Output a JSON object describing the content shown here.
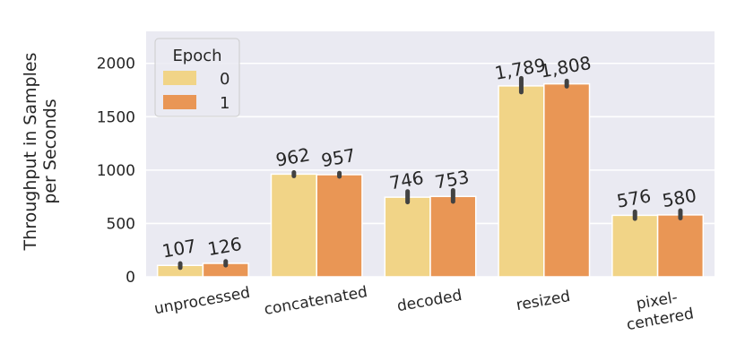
{
  "chart_data": {
    "type": "bar",
    "ylabel": [
      "Throughput in Samples",
      "per Seconds"
    ],
    "xlabel": "",
    "ylim": [
      0,
      2300
    ],
    "yticks": [
      0,
      500,
      1000,
      1500,
      2000
    ],
    "grid": true,
    "legend": {
      "title": "Epoch",
      "placement": "top-left"
    },
    "categories": [
      [
        "unprocessed"
      ],
      [
        "concatenated"
      ],
      [
        "decoded"
      ],
      [
        "resized"
      ],
      [
        "pixel-",
        "centered"
      ]
    ],
    "series": [
      {
        "name": "0",
        "color": "#f1d487",
        "values": [
          107,
          962,
          746,
          1789,
          576
        ],
        "labels": [
          "107",
          "962",
          "746",
          "1,789",
          "576"
        ],
        "err_low": [
          85,
          945,
          700,
          1730,
          545
        ],
        "err_high": [
          125,
          978,
          800,
          1860,
          610
        ]
      },
      {
        "name": "1",
        "color": "#e99655",
        "values": [
          126,
          957,
          753,
          1808,
          580
        ],
        "labels": [
          "126",
          "957",
          "753",
          "1,808",
          "580"
        ],
        "err_low": [
          108,
          940,
          705,
          1785,
          550
        ],
        "err_high": [
          145,
          972,
          810,
          1835,
          620
        ]
      }
    ],
    "colors": {
      "background": "#eaeaf2",
      "grid": "#ffffff",
      "errorbar": "#424242"
    }
  }
}
